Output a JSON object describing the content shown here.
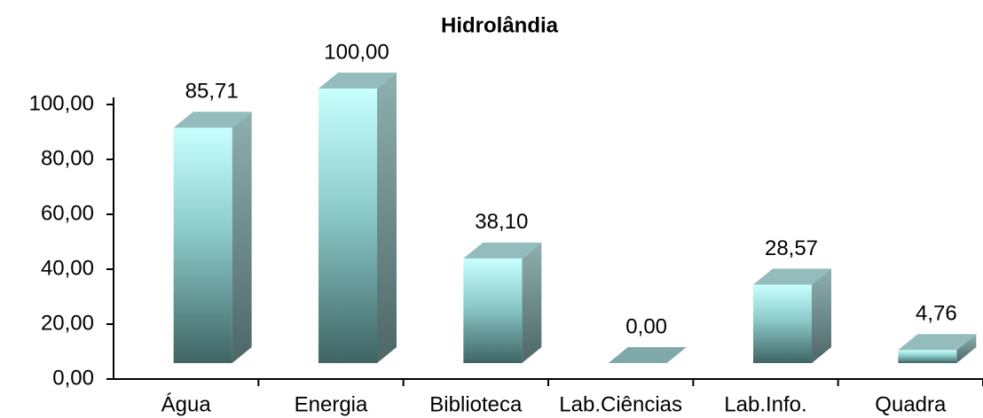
{
  "chart_data": {
    "type": "bar3d",
    "title": "Hidrolândia",
    "categories": [
      "Água",
      "Energia",
      "Biblioteca",
      "Lab.Ciências",
      "Lab.Info.",
      "Quadra"
    ],
    "values": [
      85.71,
      100,
      38.1,
      0,
      28.57,
      4.76
    ],
    "value_labels": [
      "85,71",
      "100,00",
      "38,10",
      "0,00",
      "28,57",
      "4,76"
    ],
    "color": "#a9e6e6",
    "ylim": [
      0,
      100
    ],
    "yticks": [
      {
        "value": 0,
        "label": "0,00"
      },
      {
        "value": 20,
        "label": "20,00"
      },
      {
        "value": 40,
        "label": "40,00"
      },
      {
        "value": 60,
        "label": "60,00"
      },
      {
        "value": 80,
        "label": "80,00"
      },
      {
        "value": 100,
        "label": "100,00"
      }
    ]
  }
}
